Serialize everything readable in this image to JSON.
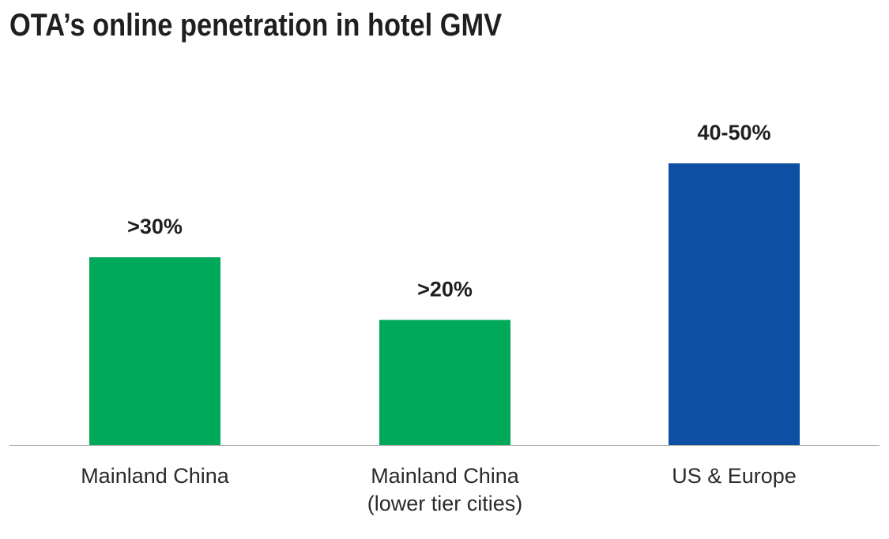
{
  "chart_data": {
    "type": "bar",
    "title": "OTA’s online penetration in hotel GMV",
    "xlabel": "",
    "ylabel": "",
    "ylim": [
      0,
      60
    ],
    "grid": false,
    "legend": "none",
    "categories": [
      [
        "Mainland China"
      ],
      [
        "Mainland China",
        "(lower tier cities)"
      ],
      [
        "US & Europe"
      ]
    ],
    "values": [
      30,
      20,
      45
    ],
    "value_labels": [
      ">30%",
      ">20%",
      "40-50%"
    ],
    "colors": [
      "#00a85a",
      "#00a85a",
      "#0d4fa3"
    ]
  },
  "colors": {
    "axis": "#b0b0b0"
  }
}
